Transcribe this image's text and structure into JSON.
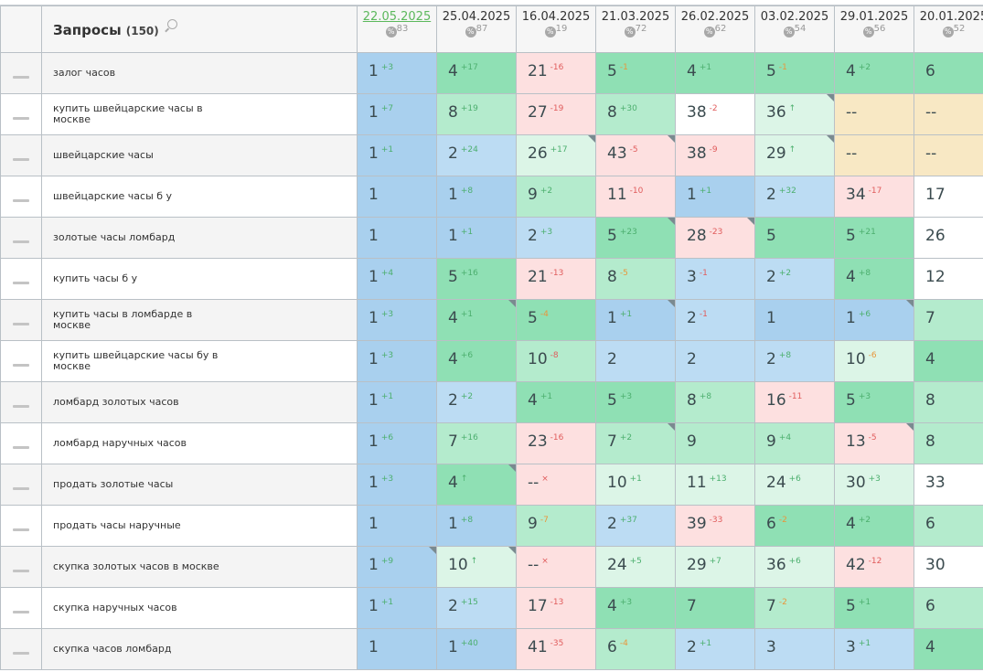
{
  "header": {
    "title": "Запросы",
    "count": "(150)",
    "search_icon": "search-icon"
  },
  "dates": [
    {
      "label": "22.05.2025",
      "pct": "83",
      "active": true
    },
    {
      "label": "25.04.2025",
      "pct": "87"
    },
    {
      "label": "16.04.2025",
      "pct": "19"
    },
    {
      "label": "21.03.2025",
      "pct": "72"
    },
    {
      "label": "26.02.2025",
      "pct": "62"
    },
    {
      "label": "03.02.2025",
      "pct": "54"
    },
    {
      "label": "29.01.2025",
      "pct": "56"
    },
    {
      "label": "20.01.2025",
      "pct": "52"
    }
  ],
  "colors": {
    "B": "#a9d0ee",
    "b": "#bcdcf3",
    "G": "#8fe0b4",
    "g": "#b4ebcd",
    "l": "#dcf5e7",
    "P": "#fde0e0",
    "W": "#ffffff",
    "Y": "#f8e8c4",
    "up": "#4caf6e",
    "down": "#e05c5c",
    "warn": "#e8963c"
  },
  "rows": [
    {
      "query": "залог часов",
      "cells": [
        [
          "1",
          "+3",
          "up",
          "B"
        ],
        [
          "4",
          "+17",
          "up",
          "G"
        ],
        [
          "21",
          "-16",
          "down",
          "P"
        ],
        [
          "5",
          "-1",
          "warn",
          "G"
        ],
        [
          "4",
          "+1",
          "up",
          "G"
        ],
        [
          "5",
          "-1",
          "warn",
          "G"
        ],
        [
          "4",
          "+2",
          "up",
          "G"
        ],
        [
          "6",
          "",
          "",
          "G"
        ]
      ]
    },
    {
      "query": "купить швейцарские часы в москве",
      "cells": [
        [
          "1",
          "+7",
          "up",
          "B"
        ],
        [
          "8",
          "+19",
          "up",
          "g"
        ],
        [
          "27",
          "-19",
          "down",
          "P"
        ],
        [
          "8",
          "+30",
          "up",
          "g"
        ],
        [
          "38",
          "-2",
          "down",
          "W"
        ],
        [
          "36",
          "↑",
          "up",
          "l",
          1
        ],
        [
          "--",
          "",
          "",
          "Y"
        ],
        [
          "--",
          "",
          "",
          "Y"
        ]
      ]
    },
    {
      "query": "швейцарские часы",
      "cells": [
        [
          "1",
          "+1",
          "up",
          "B"
        ],
        [
          "2",
          "+24",
          "up",
          "b"
        ],
        [
          "26",
          "+17",
          "up",
          "l",
          1
        ],
        [
          "43",
          "-5",
          "down",
          "P",
          1
        ],
        [
          "38",
          "-9",
          "down",
          "P"
        ],
        [
          "29",
          "↑",
          "up",
          "l",
          1
        ],
        [
          "--",
          "",
          "",
          "Y"
        ],
        [
          "--",
          "",
          "",
          "Y"
        ]
      ]
    },
    {
      "query": "швейцарские часы б у",
      "cells": [
        [
          "1",
          "",
          "",
          "B"
        ],
        [
          "1",
          "+8",
          "up",
          "B"
        ],
        [
          "9",
          "+2",
          "up",
          "g"
        ],
        [
          "11",
          "-10",
          "down",
          "P"
        ],
        [
          "1",
          "+1",
          "up",
          "B"
        ],
        [
          "2",
          "+32",
          "up",
          "b"
        ],
        [
          "34",
          "-17",
          "down",
          "P"
        ],
        [
          "17",
          "",
          "",
          "W"
        ]
      ]
    },
    {
      "query": "золотые часы ломбард",
      "cells": [
        [
          "1",
          "",
          "",
          "B"
        ],
        [
          "1",
          "+1",
          "up",
          "B"
        ],
        [
          "2",
          "+3",
          "up",
          "b"
        ],
        [
          "5",
          "+23",
          "up",
          "G",
          1
        ],
        [
          "28",
          "-23",
          "down",
          "P",
          1
        ],
        [
          "5",
          "",
          "",
          "G"
        ],
        [
          "5",
          "+21",
          "up",
          "G"
        ],
        [
          "26",
          "",
          "",
          "W"
        ]
      ]
    },
    {
      "query": "купить часы б у",
      "cells": [
        [
          "1",
          "+4",
          "up",
          "B"
        ],
        [
          "5",
          "+16",
          "up",
          "G"
        ],
        [
          "21",
          "-13",
          "down",
          "P"
        ],
        [
          "8",
          "-5",
          "warn",
          "g"
        ],
        [
          "3",
          "-1",
          "down",
          "b"
        ],
        [
          "2",
          "+2",
          "up",
          "b"
        ],
        [
          "4",
          "+8",
          "up",
          "G"
        ],
        [
          "12",
          "",
          "",
          "W"
        ]
      ]
    },
    {
      "query": "купить часы в ломбарде в москве",
      "cells": [
        [
          "1",
          "+3",
          "up",
          "B"
        ],
        [
          "4",
          "+1",
          "up",
          "G",
          1
        ],
        [
          "5",
          "-4",
          "warn",
          "G"
        ],
        [
          "1",
          "+1",
          "up",
          "B",
          1
        ],
        [
          "2",
          "-1",
          "down",
          "b"
        ],
        [
          "1",
          "",
          "",
          "B"
        ],
        [
          "1",
          "+6",
          "up",
          "B",
          1
        ],
        [
          "7",
          "",
          "",
          "g"
        ]
      ]
    },
    {
      "query": "купить швейцарские часы бу в москве",
      "cells": [
        [
          "1",
          "+3",
          "up",
          "B"
        ],
        [
          "4",
          "+6",
          "up",
          "G"
        ],
        [
          "10",
          "-8",
          "down",
          "g"
        ],
        [
          "2",
          "",
          "",
          "b"
        ],
        [
          "2",
          "",
          "",
          "b"
        ],
        [
          "2",
          "+8",
          "up",
          "b"
        ],
        [
          "10",
          "-6",
          "warn",
          "l"
        ],
        [
          "4",
          "",
          "",
          "G"
        ]
      ]
    },
    {
      "query": "ломбард золотых часов",
      "cells": [
        [
          "1",
          "+1",
          "up",
          "B"
        ],
        [
          "2",
          "+2",
          "up",
          "b"
        ],
        [
          "4",
          "+1",
          "up",
          "G"
        ],
        [
          "5",
          "+3",
          "up",
          "G"
        ],
        [
          "8",
          "+8",
          "up",
          "g"
        ],
        [
          "16",
          "-11",
          "down",
          "P"
        ],
        [
          "5",
          "+3",
          "up",
          "G"
        ],
        [
          "8",
          "",
          "",
          "g"
        ]
      ]
    },
    {
      "query": "ломбард наручных часов",
      "cells": [
        [
          "1",
          "+6",
          "up",
          "B"
        ],
        [
          "7",
          "+16",
          "up",
          "g"
        ],
        [
          "23",
          "-16",
          "down",
          "P"
        ],
        [
          "7",
          "+2",
          "up",
          "g",
          1
        ],
        [
          "9",
          "",
          "",
          "g"
        ],
        [
          "9",
          "+4",
          "up",
          "g"
        ],
        [
          "13",
          "-5",
          "down",
          "P",
          1
        ],
        [
          "8",
          "",
          "",
          "g"
        ]
      ]
    },
    {
      "query": "продать золотые часы",
      "cells": [
        [
          "1",
          "+3",
          "up",
          "B"
        ],
        [
          "4",
          "↑",
          "up",
          "G",
          1
        ],
        [
          "--",
          "×",
          "down",
          "P"
        ],
        [
          "10",
          "+1",
          "up",
          "l"
        ],
        [
          "11",
          "+13",
          "up",
          "l"
        ],
        [
          "24",
          "+6",
          "up",
          "l"
        ],
        [
          "30",
          "+3",
          "up",
          "l"
        ],
        [
          "33",
          "",
          "",
          "W"
        ]
      ]
    },
    {
      "query": "продать часы наручные",
      "cells": [
        [
          "1",
          "",
          "",
          "B"
        ],
        [
          "1",
          "+8",
          "up",
          "B"
        ],
        [
          "9",
          "-7",
          "warn",
          "g"
        ],
        [
          "2",
          "+37",
          "up",
          "b"
        ],
        [
          "39",
          "-33",
          "down",
          "P"
        ],
        [
          "6",
          "-2",
          "warn",
          "G"
        ],
        [
          "4",
          "+2",
          "up",
          "G"
        ],
        [
          "6",
          "",
          "",
          "g"
        ]
      ]
    },
    {
      "query": "скупка золотых часов в москве",
      "cells": [
        [
          "1",
          "+9",
          "up",
          "B",
          1
        ],
        [
          "10",
          "↑",
          "up",
          "l",
          1
        ],
        [
          "--",
          "×",
          "down",
          "P"
        ],
        [
          "24",
          "+5",
          "up",
          "l"
        ],
        [
          "29",
          "+7",
          "up",
          "l"
        ],
        [
          "36",
          "+6",
          "up",
          "l"
        ],
        [
          "42",
          "-12",
          "down",
          "P"
        ],
        [
          "30",
          "",
          "",
          "W"
        ]
      ]
    },
    {
      "query": "скупка наручных часов",
      "cells": [
        [
          "1",
          "+1",
          "up",
          "B"
        ],
        [
          "2",
          "+15",
          "up",
          "b"
        ],
        [
          "17",
          "-13",
          "down",
          "P"
        ],
        [
          "4",
          "+3",
          "up",
          "G"
        ],
        [
          "7",
          "",
          "",
          "G"
        ],
        [
          "7",
          "-2",
          "warn",
          "g"
        ],
        [
          "5",
          "+1",
          "up",
          "G"
        ],
        [
          "6",
          "",
          "",
          "g"
        ]
      ]
    },
    {
      "query": "скупка часов ломбард",
      "cells": [
        [
          "1",
          "",
          "",
          "B"
        ],
        [
          "1",
          "+40",
          "up",
          "B"
        ],
        [
          "41",
          "-35",
          "down",
          "P"
        ],
        [
          "6",
          "-4",
          "warn",
          "g"
        ],
        [
          "2",
          "+1",
          "up",
          "b"
        ],
        [
          "3",
          "",
          "",
          "b"
        ],
        [
          "3",
          "+1",
          "up",
          "b"
        ],
        [
          "4",
          "",
          "",
          "G"
        ]
      ]
    }
  ]
}
